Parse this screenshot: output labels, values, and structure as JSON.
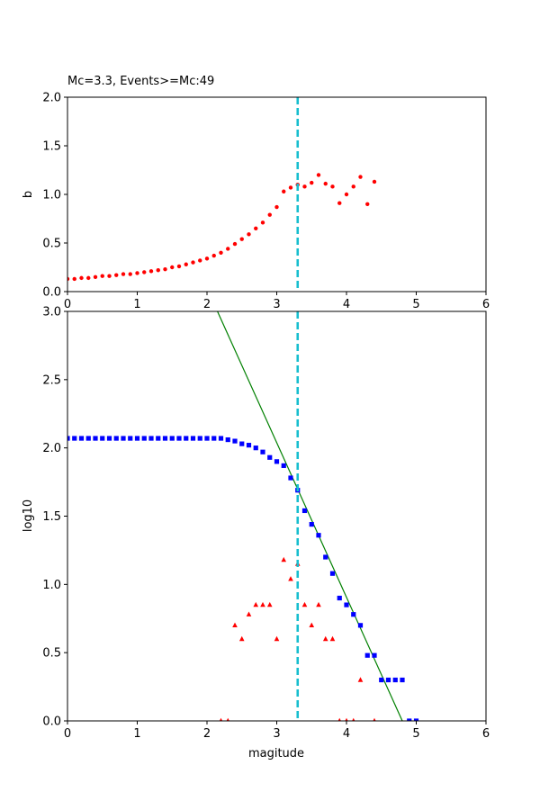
{
  "chart_data": [
    {
      "type": "scatter",
      "title": "Mc=3.3, Events>=Mc:49",
      "xlabel": "",
      "ylabel": "b",
      "xlim": [
        0,
        6
      ],
      "ylim": [
        0,
        2.0
      ],
      "xticks": [
        "0",
        "1",
        "2",
        "3",
        "4",
        "5",
        "6"
      ],
      "yticks": [
        "0.0",
        "0.5",
        "1.0",
        "1.5",
        "2.0"
      ],
      "grid": false,
      "mc_line": {
        "x": 3.3,
        "color": "#17becf",
        "style": "dashed"
      },
      "series": [
        {
          "marker": "circle",
          "color": "#ff0000",
          "x": [
            0.0,
            0.1,
            0.2,
            0.3,
            0.4,
            0.5,
            0.6,
            0.7,
            0.8,
            0.9,
            1.0,
            1.1,
            1.2,
            1.3,
            1.4,
            1.5,
            1.6,
            1.7,
            1.8,
            1.9,
            2.0,
            2.1,
            2.2,
            2.3,
            2.4,
            2.5,
            2.6,
            2.7,
            2.8,
            2.9,
            3.0,
            3.1,
            3.2,
            3.3,
            3.4,
            3.5,
            3.6,
            3.7,
            3.8,
            3.9,
            4.0,
            4.1,
            4.2,
            4.3,
            4.4
          ],
          "y": [
            0.13,
            0.13,
            0.14,
            0.14,
            0.15,
            0.16,
            0.16,
            0.17,
            0.18,
            0.18,
            0.19,
            0.2,
            0.21,
            0.22,
            0.23,
            0.25,
            0.26,
            0.28,
            0.3,
            0.32,
            0.34,
            0.37,
            0.4,
            0.44,
            0.49,
            0.54,
            0.59,
            0.65,
            0.71,
            0.79,
            0.87,
            1.03,
            1.07,
            1.1,
            1.08,
            1.12,
            1.2,
            1.11,
            1.08,
            0.91,
            1.0,
            1.08,
            1.18,
            0.9,
            1.13
          ]
        }
      ]
    },
    {
      "type": "scatter",
      "title": "",
      "xlabel": "magitude",
      "ylabel": "log10",
      "xlim": [
        0,
        6
      ],
      "ylim": [
        0,
        3.0
      ],
      "xticks": [
        "0",
        "1",
        "2",
        "3",
        "4",
        "5",
        "6"
      ],
      "yticks": [
        "0.0",
        "0.5",
        "1.0",
        "1.5",
        "2.0",
        "2.5",
        "3.0"
      ],
      "grid": false,
      "mc_line": {
        "x": 3.3,
        "color": "#17becf",
        "style": "dashed"
      },
      "fit_line": {
        "color": "#008000",
        "x": [
          2.15,
          4.8
        ],
        "y": [
          3.0,
          0.0
        ]
      },
      "series": [
        {
          "marker": "square",
          "color": "#0000ff",
          "x": [
            0.0,
            0.1,
            0.2,
            0.3,
            0.4,
            0.5,
            0.6,
            0.7,
            0.8,
            0.9,
            1.0,
            1.1,
            1.2,
            1.3,
            1.4,
            1.5,
            1.6,
            1.7,
            1.8,
            1.9,
            2.0,
            2.1,
            2.2,
            2.3,
            2.4,
            2.5,
            2.6,
            2.7,
            2.8,
            2.9,
            3.0,
            3.1,
            3.2,
            3.3,
            3.4,
            3.5,
            3.6,
            3.7,
            3.8,
            3.9,
            4.0,
            4.1,
            4.2,
            4.3,
            4.4,
            4.5,
            4.6,
            4.7,
            4.8,
            4.9,
            5.0
          ],
          "y": [
            2.07,
            2.07,
            2.07,
            2.07,
            2.07,
            2.07,
            2.07,
            2.07,
            2.07,
            2.07,
            2.07,
            2.07,
            2.07,
            2.07,
            2.07,
            2.07,
            2.07,
            2.07,
            2.07,
            2.07,
            2.07,
            2.07,
            2.07,
            2.06,
            2.05,
            2.03,
            2.02,
            2.0,
            1.97,
            1.93,
            1.9,
            1.87,
            1.78,
            1.69,
            1.54,
            1.44,
            1.36,
            1.2,
            1.08,
            0.9,
            0.85,
            0.78,
            0.7,
            0.48,
            0.48,
            0.3,
            0.3,
            0.3,
            0.3,
            0.0,
            0.0
          ]
        },
        {
          "marker": "triangle",
          "color": "#ff0000",
          "x": [
            2.2,
            2.3,
            2.4,
            2.5,
            2.6,
            2.7,
            2.8,
            2.9,
            3.0,
            3.1,
            3.2,
            3.3,
            3.4,
            3.5,
            3.6,
            3.7,
            3.8,
            3.9,
            4.0,
            4.1,
            4.2,
            4.4
          ],
          "y": [
            0.0,
            0.0,
            0.7,
            0.6,
            0.78,
            0.85,
            0.85,
            0.85,
            0.6,
            1.18,
            1.04,
            1.15,
            0.85,
            0.7,
            0.85,
            0.6,
            0.6,
            0.0,
            0.0,
            0.0,
            0.3,
            0.0
          ]
        }
      ]
    }
  ]
}
